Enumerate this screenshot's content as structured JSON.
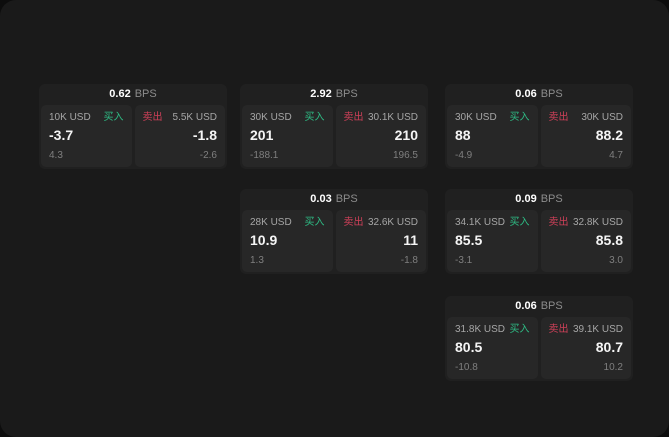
{
  "labels": {
    "bps_unit": "BPS",
    "buy": "买入",
    "sell": "卖出"
  },
  "colors": {
    "buy": "#2ebd85",
    "sell": "#cf4059",
    "background": "#1a1a1a",
    "card": "#202020",
    "panel": "#272727"
  },
  "cards": [
    {
      "bps": "0.62",
      "buy": {
        "amount": "10K USD",
        "value": "-3.7",
        "sub": "4.3"
      },
      "sell": {
        "amount": "5.5K USD",
        "value": "-1.8",
        "sub": "-2.6"
      }
    },
    {
      "bps": "2.92",
      "buy": {
        "amount": "30K USD",
        "value": "201",
        "sub": "-188.1"
      },
      "sell": {
        "amount": "30.1K USD",
        "value": "210",
        "sub": "196.5"
      }
    },
    {
      "bps": "0.06",
      "buy": {
        "amount": "30K USD",
        "value": "88",
        "sub": "-4.9"
      },
      "sell": {
        "amount": "30K USD",
        "value": "88.2",
        "sub": "4.7"
      }
    },
    {
      "bps": "0.03",
      "buy": {
        "amount": "28K USD",
        "value": "10.9",
        "sub": "1.3"
      },
      "sell": {
        "amount": "32.6K USD",
        "value": "11",
        "sub": "-1.8"
      }
    },
    {
      "bps": "0.09",
      "buy": {
        "amount": "34.1K USD",
        "value": "85.5",
        "sub": "-3.1"
      },
      "sell": {
        "amount": "32.8K USD",
        "value": "85.8",
        "sub": "3.0"
      }
    },
    {
      "bps": "0.06",
      "buy": {
        "amount": "31.8K USD",
        "value": "80.5",
        "sub": "-10.8"
      },
      "sell": {
        "amount": "39.1K USD",
        "value": "80.7",
        "sub": "10.2"
      }
    }
  ]
}
